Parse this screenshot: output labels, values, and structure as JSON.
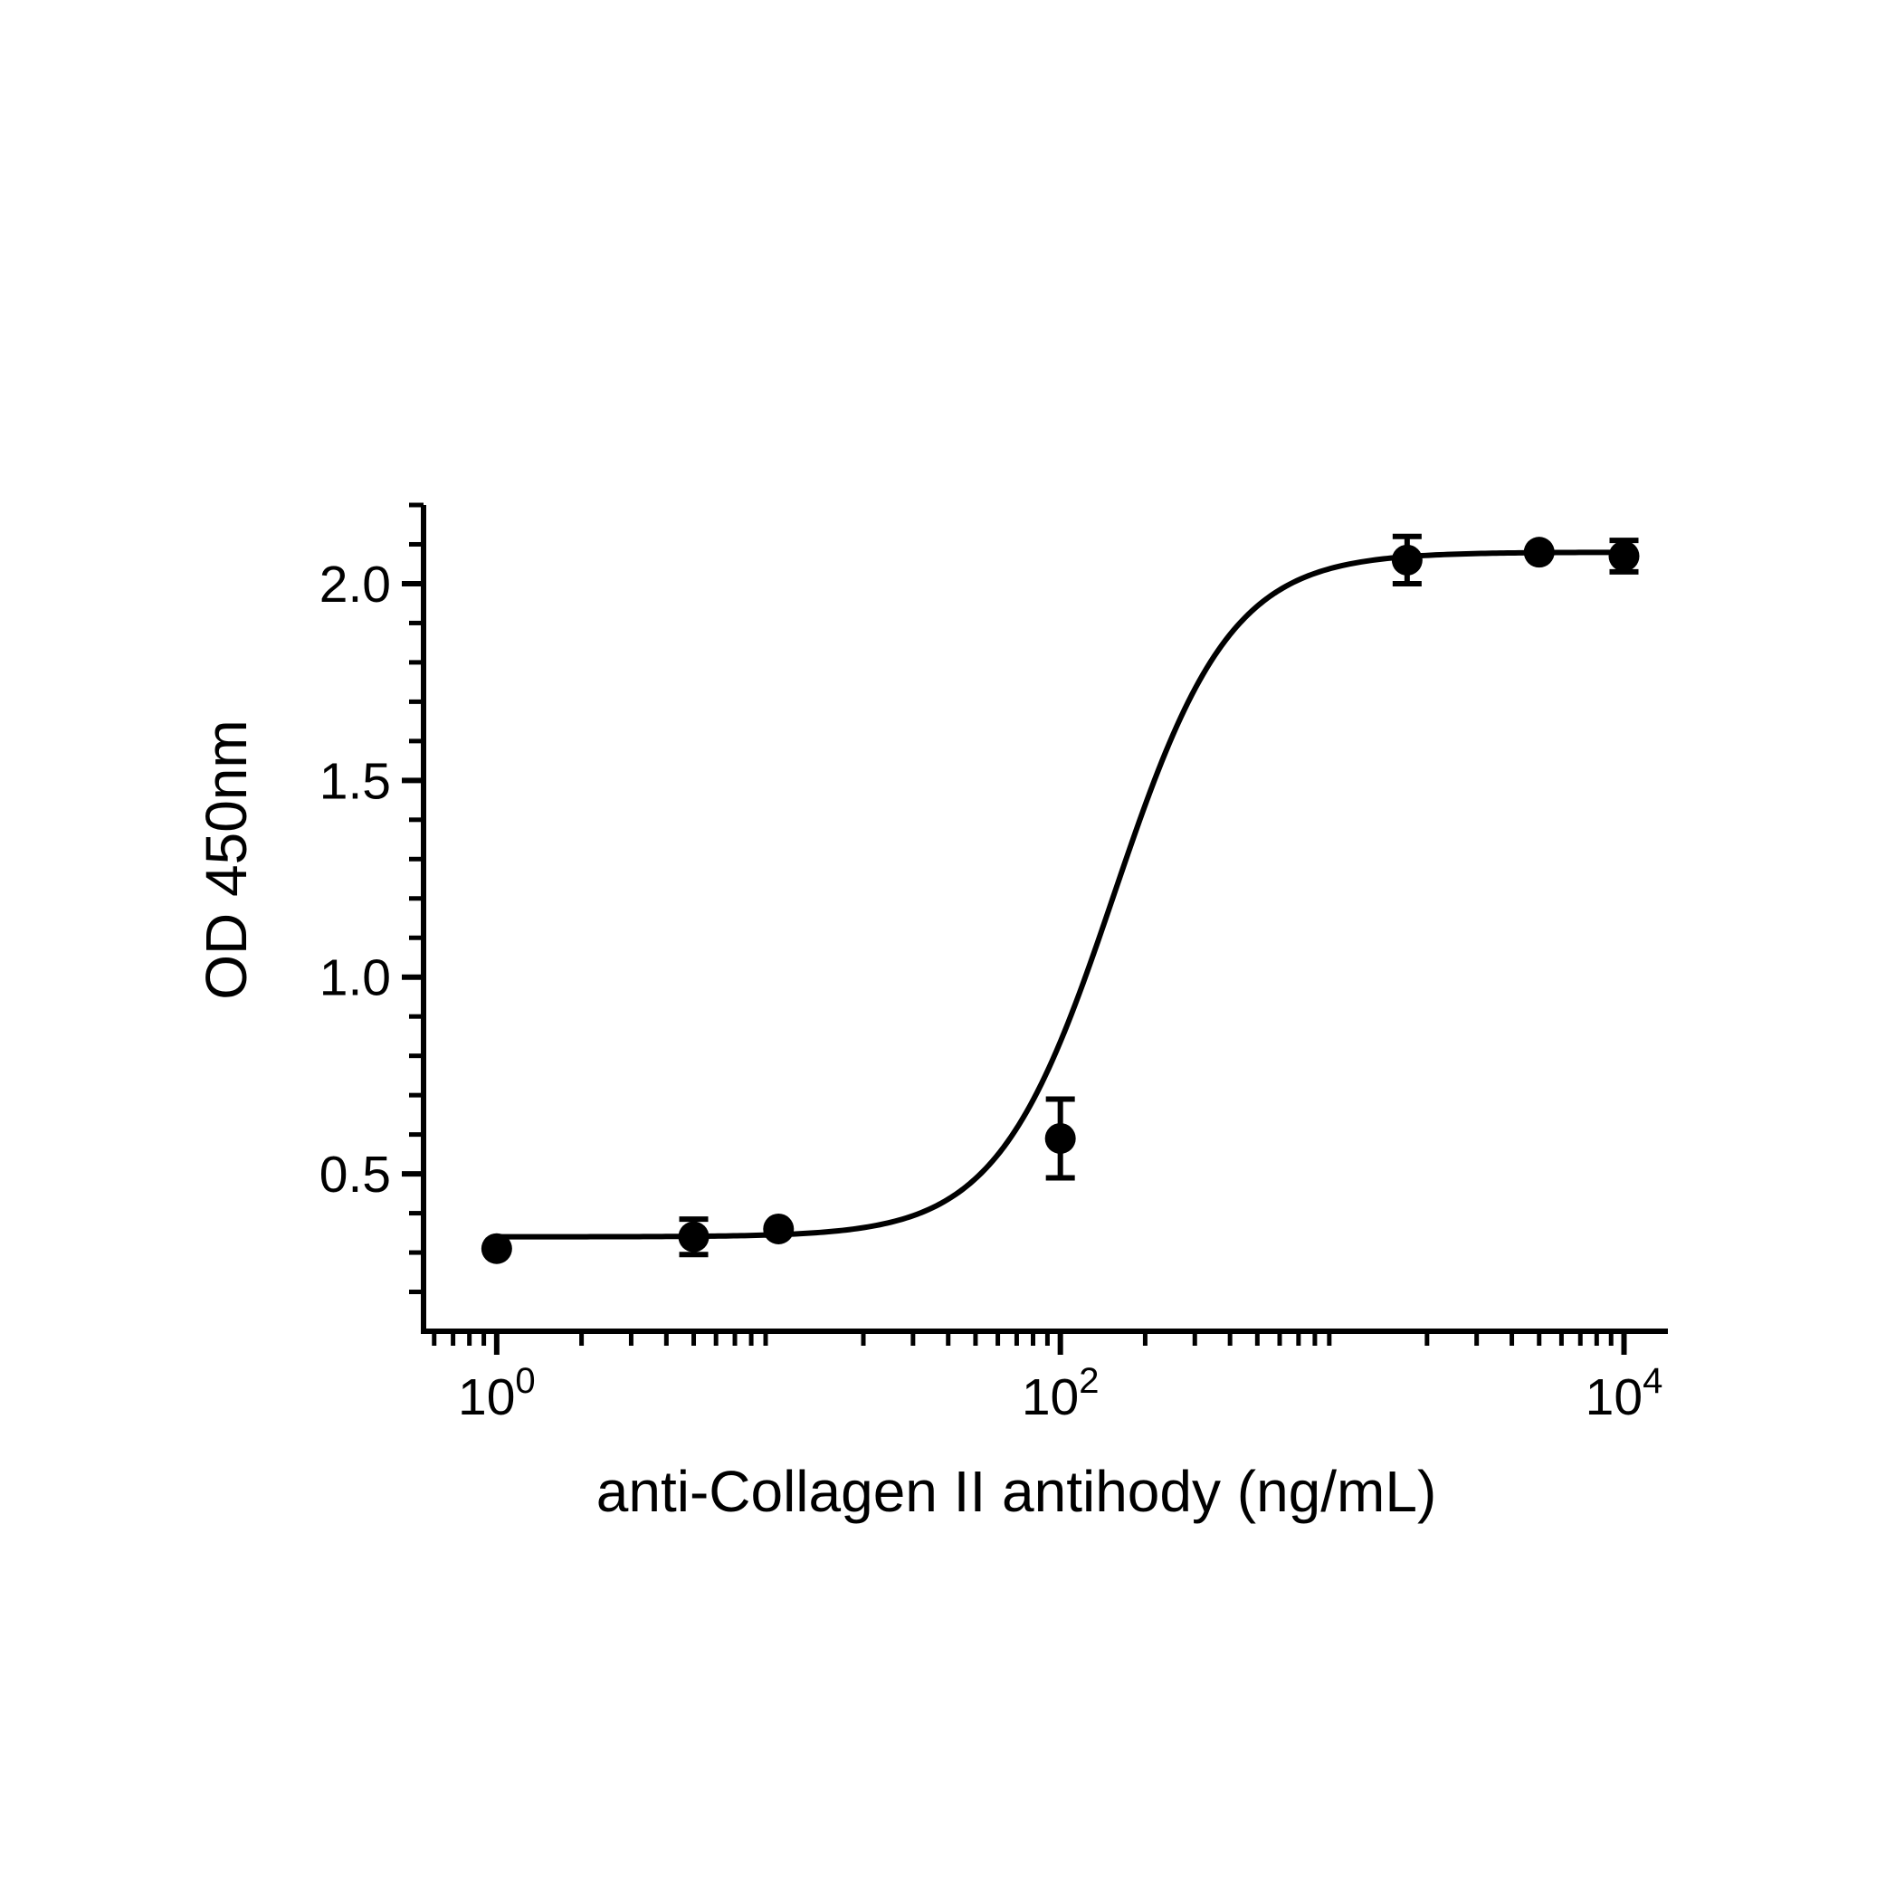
{
  "chart_data": {
    "type": "scatter",
    "xlabel": "anti-Collagen II antihody (ng/mL)",
    "ylabel": "OD 450nm",
    "x_scale": "log",
    "xlim": [
      0.55,
      14000
    ],
    "ylim": [
      0.1,
      2.2
    ],
    "x_ticks": [
      {
        "base": "10",
        "exp": "0"
      },
      {
        "base": "10",
        "exp": "2"
      },
      {
        "base": "10",
        "exp": "4"
      }
    ],
    "y_ticks": [
      "0.5",
      "1.0",
      "1.5",
      "2.0"
    ],
    "grid": false,
    "legend": "none",
    "colors": {
      "points": "#000000",
      "curve": "#000000",
      "axes": "#000000"
    },
    "points": [
      {
        "x": 1.0,
        "y": 0.31,
        "err": 0.0
      },
      {
        "x": 5.0,
        "y": 0.34,
        "err": 0.045
      },
      {
        "x": 10.0,
        "y": 0.36,
        "err": 0.0
      },
      {
        "x": 100.0,
        "y": 0.59,
        "err": 0.1
      },
      {
        "x": 1700.0,
        "y": 2.06,
        "err": 0.06
      },
      {
        "x": 5000.0,
        "y": 2.08,
        "err": 0.0
      },
      {
        "x": 10000.0,
        "y": 2.07,
        "err": 0.04
      }
    ],
    "fit": {
      "model": "4PL",
      "bottom": 0.34,
      "top": 2.08,
      "ec50": 155.0,
      "hill": 2.1
    }
  }
}
